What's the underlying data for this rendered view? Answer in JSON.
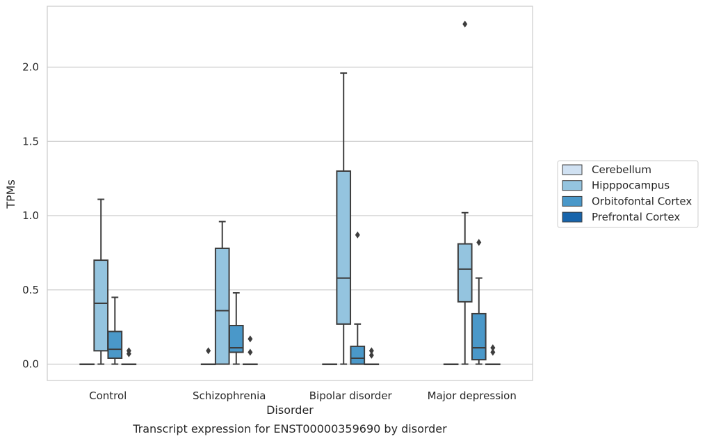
{
  "chart_data": {
    "type": "box",
    "title": "",
    "caption": "Transcript expression for ENST00000359690 by disorder",
    "xlabel": "Disorder",
    "ylabel": "TPMs",
    "ylim": [
      -0.11,
      2.41
    ],
    "yticks": [
      0.0,
      0.5,
      1.0,
      1.5,
      2.0
    ],
    "ytick_labels": [
      "0.0",
      "0.5",
      "1.0",
      "1.5",
      "2.0"
    ],
    "grid": "horizontal",
    "legend_position": "right",
    "categories": [
      "Control",
      "Schizophrenia",
      "Bipolar disorder",
      "Major depression"
    ],
    "series": [
      {
        "name": "Cerebellum",
        "color": "#d0e1f2",
        "boxes": [
          {
            "whisker_low": 0,
            "q1": 0,
            "median": 0,
            "q3": 0,
            "whisker_high": 0,
            "outliers": []
          },
          {
            "whisker_low": 0,
            "q1": 0,
            "median": 0,
            "q3": 0,
            "whisker_high": 0,
            "outliers": [
              0.09
            ]
          },
          {
            "whisker_low": 0,
            "q1": 0,
            "median": 0,
            "q3": 0,
            "whisker_high": 0,
            "outliers": []
          },
          {
            "whisker_low": 0,
            "q1": 0,
            "median": 0,
            "q3": 0,
            "whisker_high": 0,
            "outliers": []
          }
        ]
      },
      {
        "name": "Hipppocampus",
        "color": "#94c4df",
        "boxes": [
          {
            "whisker_low": 0,
            "q1": 0.09,
            "median": 0.41,
            "q3": 0.7,
            "whisker_high": 1.11,
            "outliers": []
          },
          {
            "whisker_low": 0,
            "q1": 0,
            "median": 0.36,
            "q3": 0.78,
            "whisker_high": 0.96,
            "outliers": []
          },
          {
            "whisker_low": 0,
            "q1": 0.27,
            "median": 0.58,
            "q3": 1.3,
            "whisker_high": 1.96,
            "outliers": []
          },
          {
            "whisker_low": 0,
            "q1": 0.42,
            "median": 0.64,
            "q3": 0.81,
            "whisker_high": 1.02,
            "outliers": [
              2.29
            ]
          }
        ]
      },
      {
        "name": "Orbitofontal Cortex",
        "color": "#4a98c9",
        "boxes": [
          {
            "whisker_low": 0,
            "q1": 0.04,
            "median": 0.1,
            "q3": 0.22,
            "whisker_high": 0.45,
            "outliers": []
          },
          {
            "whisker_low": 0,
            "q1": 0.08,
            "median": 0.11,
            "q3": 0.26,
            "whisker_high": 0.48,
            "outliers": []
          },
          {
            "whisker_low": 0,
            "q1": 0,
            "median": 0.04,
            "q3": 0.12,
            "whisker_high": 0.27,
            "outliers": [
              0.87
            ]
          },
          {
            "whisker_low": 0,
            "q1": 0.03,
            "median": 0.11,
            "q3": 0.34,
            "whisker_high": 0.58,
            "outliers": [
              0.82
            ]
          }
        ]
      },
      {
        "name": "Prefrontal Cortex",
        "color": "#1764ab",
        "boxes": [
          {
            "whisker_low": 0,
            "q1": 0,
            "median": 0,
            "q3": 0,
            "whisker_high": 0,
            "outliers": [
              0.07,
              0.09
            ]
          },
          {
            "whisker_low": 0,
            "q1": 0,
            "median": 0,
            "q3": 0,
            "whisker_high": 0,
            "outliers": [
              0.08,
              0.17
            ]
          },
          {
            "whisker_low": 0,
            "q1": 0,
            "median": 0,
            "q3": 0,
            "whisker_high": 0,
            "outliers": [
              0.06,
              0.09
            ]
          },
          {
            "whisker_low": 0,
            "q1": 0,
            "median": 0,
            "q3": 0,
            "whisker_high": 0,
            "outliers": [
              0.08,
              0.11
            ]
          }
        ]
      }
    ]
  }
}
